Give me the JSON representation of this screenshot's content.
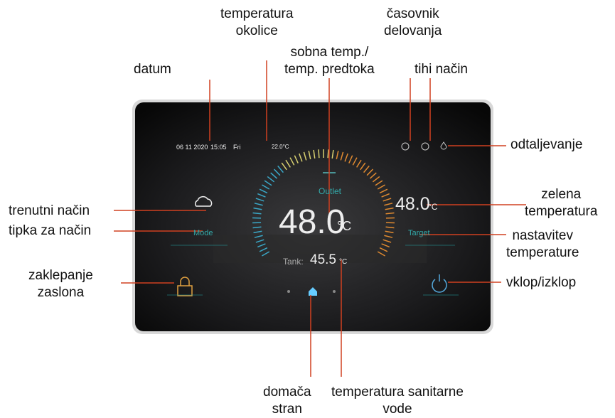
{
  "callouts": [
    {
      "lines": [
        "temperatura",
        "okolice"
      ]
    },
    {
      "lines": [
        "časovnik",
        "delovanja"
      ]
    },
    {
      "lines": [
        "datum"
      ]
    },
    {
      "lines": [
        "sobna temp./",
        "temp. predtoka"
      ]
    },
    {
      "lines": [
        "tihi način"
      ]
    },
    {
      "lines": [
        "odtaljevanje"
      ]
    },
    {
      "lines": [
        "trenutni način"
      ]
    },
    {
      "lines": [
        "tipka za način"
      ]
    },
    {
      "lines": [
        "zaklepanje",
        "zaslona"
      ]
    },
    {
      "lines": [
        "zelena",
        "temperatura"
      ]
    },
    {
      "lines": [
        "nastavitev",
        "temperature"
      ]
    },
    {
      "lines": [
        "vklop/izklop"
      ]
    },
    {
      "lines": [
        "domača",
        "stran"
      ]
    },
    {
      "lines": [
        "temperatura sanitarne",
        "vode"
      ]
    }
  ],
  "screen": {
    "date": "06 11 2020",
    "time": "15:05",
    "weekday": "Fri",
    "ambient_temp": "22.0°C",
    "outlet_label": "Outlet",
    "outlet_value": "48.0",
    "outlet_unit": "°C",
    "tank_label": "Tank:",
    "tank_value": "45.5",
    "tank_unit": "°C",
    "target_value": "48.0",
    "target_unit": "°C",
    "target_label": "Target",
    "mode_label": "Mode"
  }
}
